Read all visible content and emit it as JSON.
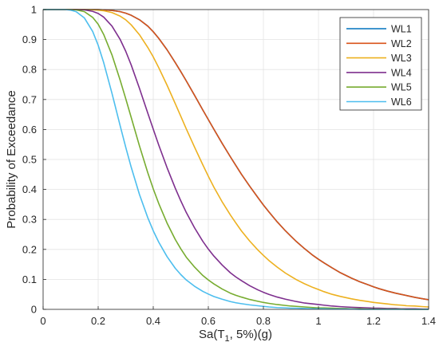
{
  "chart_data": {
    "type": "line",
    "xlabel": "Sa(T",
    "xlabel_sub": "1",
    "xlabel_suffix": ", 5%)(g)",
    "ylabel": "Probability of Exceedance",
    "xlim": [
      0,
      1.4
    ],
    "ylim": [
      0,
      1
    ],
    "xticks": [
      0,
      0.2,
      0.4,
      0.6,
      0.8,
      1,
      1.2,
      1.4
    ],
    "yticks": [
      0,
      0.1,
      0.2,
      0.3,
      0.4,
      0.5,
      0.6,
      0.7,
      0.8,
      0.9,
      1
    ],
    "grid": true,
    "legend_position": "top-right",
    "x": [
      0.02,
      0.05,
      0.08,
      0.1,
      0.12,
      0.15,
      0.18,
      0.2,
      0.22,
      0.25,
      0.28,
      0.3,
      0.32,
      0.35,
      0.38,
      0.4,
      0.42,
      0.45,
      0.48,
      0.5,
      0.52,
      0.55,
      0.58,
      0.6,
      0.62,
      0.65,
      0.68,
      0.7,
      0.72,
      0.75,
      0.78,
      0.8,
      0.82,
      0.85,
      0.88,
      0.9,
      0.92,
      0.95,
      0.98,
      1.0,
      1.02,
      1.05,
      1.08,
      1.1,
      1.12,
      1.15,
      1.18,
      1.2,
      1.22,
      1.25,
      1.28,
      1.3,
      1.32,
      1.35,
      1.38,
      1.4
    ],
    "series": [
      {
        "name": "WL1",
        "color": "#0072BD",
        "values": [
          1,
          1,
          1,
          1,
          1,
          1,
          1,
          1,
          0.999,
          0.997,
          0.993,
          0.988,
          0.981,
          0.966,
          0.945,
          0.926,
          0.904,
          0.866,
          0.823,
          0.793,
          0.762,
          0.714,
          0.665,
          0.633,
          0.601,
          0.554,
          0.509,
          0.48,
          0.451,
          0.411,
          0.373,
          0.348,
          0.325,
          0.292,
          0.262,
          0.244,
          0.226,
          0.202,
          0.18,
          0.167,
          0.155,
          0.138,
          0.122,
          0.113,
          0.104,
          0.092,
          0.082,
          0.075,
          0.069,
          0.061,
          0.054,
          0.05,
          0.046,
          0.04,
          0.035,
          0.032
        ]
      },
      {
        "name": "WL2",
        "color": "#D95319",
        "values": [
          1,
          1,
          1,
          1,
          1,
          1,
          1,
          1,
          0.999,
          0.997,
          0.993,
          0.988,
          0.981,
          0.966,
          0.945,
          0.926,
          0.904,
          0.866,
          0.823,
          0.793,
          0.762,
          0.714,
          0.665,
          0.633,
          0.601,
          0.554,
          0.509,
          0.48,
          0.451,
          0.411,
          0.373,
          0.348,
          0.325,
          0.292,
          0.262,
          0.244,
          0.226,
          0.202,
          0.18,
          0.167,
          0.155,
          0.138,
          0.122,
          0.113,
          0.104,
          0.092,
          0.082,
          0.075,
          0.069,
          0.061,
          0.054,
          0.05,
          0.046,
          0.04,
          0.035,
          0.032
        ]
      },
      {
        "name": "WL3",
        "color": "#EDB120",
        "values": [
          1,
          1,
          1,
          1,
          1,
          1,
          0.999,
          0.998,
          0.996,
          0.99,
          0.978,
          0.966,
          0.949,
          0.916,
          0.874,
          0.842,
          0.806,
          0.748,
          0.686,
          0.644,
          0.602,
          0.541,
          0.482,
          0.444,
          0.408,
          0.359,
          0.315,
          0.288,
          0.262,
          0.228,
          0.198,
          0.18,
          0.163,
          0.141,
          0.121,
          0.11,
          0.099,
          0.085,
          0.073,
          0.066,
          0.059,
          0.05,
          0.043,
          0.039,
          0.035,
          0.03,
          0.026,
          0.023,
          0.021,
          0.018,
          0.015,
          0.014,
          0.012,
          0.011,
          0.009,
          0.008
        ]
      },
      {
        "name": "WL4",
        "color": "#7E2F8E",
        "values": [
          1,
          1,
          1,
          1,
          1,
          0.999,
          0.994,
          0.987,
          0.975,
          0.945,
          0.9,
          0.861,
          0.815,
          0.737,
          0.655,
          0.601,
          0.548,
          0.473,
          0.404,
          0.362,
          0.323,
          0.272,
          0.227,
          0.201,
          0.178,
          0.148,
          0.122,
          0.108,
          0.096,
          0.079,
          0.065,
          0.057,
          0.05,
          0.041,
          0.034,
          0.03,
          0.026,
          0.021,
          0.018,
          0.016,
          0.014,
          0.011,
          0.009,
          0.008,
          0.007,
          0.006,
          0.005,
          0.004,
          0.004,
          0.003,
          0.003,
          0.002,
          0.002,
          0.002,
          0.001,
          0.001
        ]
      },
      {
        "name": "WL5",
        "color": "#77AC30",
        "values": [
          1,
          1,
          1,
          1,
          0.999,
          0.993,
          0.974,
          0.951,
          0.917,
          0.849,
          0.764,
          0.703,
          0.64,
          0.545,
          0.456,
          0.402,
          0.353,
          0.288,
          0.233,
          0.202,
          0.174,
          0.141,
          0.113,
          0.098,
          0.085,
          0.068,
          0.054,
          0.047,
          0.041,
          0.033,
          0.027,
          0.023,
          0.02,
          0.016,
          0.013,
          0.011,
          0.01,
          0.008,
          0.006,
          0.005,
          0.005,
          0.004,
          0.003,
          0.003,
          0.002,
          0.002,
          0.001,
          0.001,
          0.001,
          0.001,
          0.001,
          0.001,
          0,
          0,
          0,
          0
        ]
      },
      {
        "name": "WL6",
        "color": "#4DBEEE",
        "values": [
          1,
          1,
          1,
          0.998,
          0.993,
          0.972,
          0.927,
          0.881,
          0.823,
          0.721,
          0.612,
          0.541,
          0.474,
          0.383,
          0.306,
          0.262,
          0.224,
          0.176,
          0.137,
          0.116,
          0.098,
          0.077,
          0.06,
          0.051,
          0.043,
          0.034,
          0.026,
          0.022,
          0.019,
          0.015,
          0.012,
          0.01,
          0.008,
          0.006,
          0.005,
          0.004,
          0.004,
          0.003,
          0.002,
          0.002,
          0.002,
          0.001,
          0.001,
          0.001,
          0.001,
          0,
          0,
          0,
          0,
          0,
          0,
          0,
          0,
          0,
          0,
          0
        ]
      }
    ]
  }
}
